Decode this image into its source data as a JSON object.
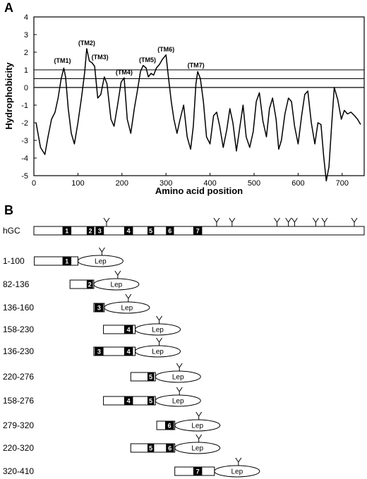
{
  "panel_a": {
    "letter": "A",
    "chart_data": {
      "type": "line",
      "title": "",
      "xlabel": "Amino acid position",
      "ylabel": "Hydrophobicity",
      "xlim": [
        0,
        750
      ],
      "ylim": [
        -5,
        4
      ],
      "xticks": [
        "0",
        "100",
        "200",
        "300",
        "400",
        "500",
        "600",
        "700"
      ],
      "yticks": [
        "4",
        "3",
        "2",
        "1",
        "0",
        "-1",
        "-2",
        "-3",
        "-4",
        "-5"
      ],
      "reference_lines": [
        0,
        0.5,
        1.0
      ],
      "annotations": [
        {
          "label": "(TM1)",
          "x": 65,
          "y": 1.2
        },
        {
          "label": "(TM2)",
          "x": 120,
          "y": 2.2
        },
        {
          "label": "(TM3)",
          "x": 150,
          "y": 1.4
        },
        {
          "label": "(TM4)",
          "x": 205,
          "y": 0.55
        },
        {
          "label": "(TM5)",
          "x": 258,
          "y": 1.25
        },
        {
          "label": "(TM6)",
          "x": 300,
          "y": 1.85
        },
        {
          "label": "(TM7)",
          "x": 368,
          "y": 0.95
        }
      ],
      "x": [
        5,
        15,
        25,
        32,
        40,
        48,
        55,
        62,
        68,
        72,
        78,
        85,
        92,
        100,
        108,
        115,
        120,
        126,
        132,
        138,
        145,
        152,
        160,
        166,
        175,
        182,
        190,
        198,
        205,
        212,
        220,
        228,
        235,
        242,
        248,
        255,
        260,
        266,
        272,
        278,
        285,
        292,
        300,
        306,
        312,
        318,
        325,
        332,
        340,
        348,
        356,
        362,
        368,
        372,
        378,
        385,
        392,
        400,
        408,
        415,
        422,
        430,
        438,
        445,
        452,
        460,
        468,
        475,
        482,
        490,
        498,
        505,
        512,
        520,
        528,
        535,
        542,
        550,
        556,
        562,
        570,
        578,
        585,
        592,
        600,
        608,
        615,
        622,
        630,
        638,
        645,
        652,
        658,
        664,
        670,
        676,
        682,
        690,
        698,
        705,
        712,
        720,
        728,
        735,
        742
      ],
      "y": [
        -2.0,
        -3.4,
        -3.8,
        -2.8,
        -1.8,
        -1.4,
        -0.6,
        0.5,
        1.1,
        0.6,
        -1.2,
        -2.6,
        -3.2,
        -2.0,
        -0.6,
        0.8,
        2.2,
        1.5,
        1.4,
        1.2,
        -0.6,
        -0.4,
        0.6,
        0.2,
        -1.8,
        -2.2,
        -1.0,
        0.3,
        0.55,
        -1.8,
        -2.6,
        -1.2,
        -0.2,
        0.9,
        1.25,
        1.1,
        0.6,
        0.8,
        0.7,
        1.1,
        1.3,
        1.6,
        1.85,
        0.5,
        -0.8,
        -1.8,
        -2.6,
        -1.8,
        -1.0,
        -2.8,
        -3.5,
        -2.2,
        0.2,
        0.9,
        0.5,
        -0.8,
        -2.8,
        -3.2,
        -1.6,
        -1.4,
        -2.2,
        -3.4,
        -2.4,
        -1.2,
        -2.0,
        -3.6,
        -2.2,
        -1.0,
        -2.8,
        -3.4,
        -2.5,
        -0.8,
        -0.3,
        -1.9,
        -2.8,
        -1.2,
        -0.6,
        -1.8,
        -3.5,
        -3.0,
        -1.5,
        -0.6,
        -0.8,
        -2.2,
        -3.2,
        -1.6,
        -0.4,
        -0.2,
        -2.0,
        -3.2,
        -2.0,
        -2.1,
        -3.9,
        -5.3,
        -4.5,
        -2.2,
        0.0,
        -0.7,
        -1.8,
        -1.3,
        -1.5,
        -1.4,
        -1.6,
        -1.8,
        -2.1
      ]
    }
  },
  "panel_b": {
    "letter": "B",
    "domain_start": 0,
    "domain_end": 750,
    "rows": [
      {
        "label": "hGC",
        "start": 0,
        "end": 750,
        "segments": [
          {
            "num": "1",
            "start": 65,
            "end": 85
          },
          {
            "num": "2",
            "start": 120,
            "end": 137
          },
          {
            "num": "3",
            "start": 140,
            "end": 159
          },
          {
            "num": "4",
            "start": 205,
            "end": 225
          },
          {
            "num": "5",
            "start": 258,
            "end": 273
          },
          {
            "num": "6",
            "start": 300,
            "end": 318
          },
          {
            "num": "7",
            "start": 362,
            "end": 382
          }
        ],
        "glyco": [
          165,
          415,
          450,
          552,
          578,
          592,
          640,
          660,
          760
        ],
        "lep": false,
        "lep_label": ""
      },
      {
        "label": "1-100",
        "start": 1,
        "end": 100,
        "segments": [
          {
            "num": "1",
            "start": 65,
            "end": 85
          }
        ],
        "glyco": [],
        "lep": true,
        "lep_label": "Lep"
      },
      {
        "label": "82-136",
        "start": 82,
        "end": 136,
        "segments": [
          {
            "num": "2",
            "start": 120,
            "end": 134
          }
        ],
        "glyco": [],
        "lep": true,
        "lep_label": "Lep"
      },
      {
        "label": "136-160",
        "start": 136,
        "end": 160,
        "segments": [
          {
            "num": "3",
            "start": 138,
            "end": 158
          }
        ],
        "glyco": [],
        "lep": true,
        "lep_label": "Lep"
      },
      {
        "label": "158-230",
        "start": 158,
        "end": 230,
        "segments": [
          {
            "num": "4",
            "start": 205,
            "end": 225
          }
        ],
        "glyco": [],
        "lep": true,
        "lep_label": "Lep"
      },
      {
        "label": "136-230",
        "start": 136,
        "end": 230,
        "segments": [
          {
            "num": "3",
            "start": 138,
            "end": 158
          },
          {
            "num": "4",
            "start": 205,
            "end": 225
          }
        ],
        "glyco": [],
        "lep": true,
        "lep_label": "Lep"
      },
      {
        "label": "220-276",
        "start": 220,
        "end": 276,
        "segments": [
          {
            "num": "5",
            "start": 258,
            "end": 273
          }
        ],
        "glyco": [],
        "lep": true,
        "lep_label": "Lep"
      },
      {
        "label": "158-276",
        "start": 158,
        "end": 276,
        "segments": [
          {
            "num": "4",
            "start": 205,
            "end": 225
          },
          {
            "num": "5",
            "start": 258,
            "end": 273
          }
        ],
        "glyco": [],
        "lep": true,
        "lep_label": "Lep"
      },
      {
        "label": "279-320",
        "start": 279,
        "end": 320,
        "segments": [
          {
            "num": "6",
            "start": 298,
            "end": 318
          }
        ],
        "glyco": [],
        "lep": true,
        "lep_label": "Lep"
      },
      {
        "label": "220-320",
        "start": 220,
        "end": 320,
        "segments": [
          {
            "num": "5",
            "start": 258,
            "end": 273
          },
          {
            "num": "6",
            "start": 300,
            "end": 318
          }
        ],
        "glyco": [],
        "lep": true,
        "lep_label": "Lep"
      },
      {
        "label": "320-410",
        "start": 320,
        "end": 410,
        "segments": [
          {
            "num": "7",
            "start": 362,
            "end": 382
          }
        ],
        "glyco": [],
        "lep": true,
        "lep_label": "Lep"
      }
    ]
  }
}
